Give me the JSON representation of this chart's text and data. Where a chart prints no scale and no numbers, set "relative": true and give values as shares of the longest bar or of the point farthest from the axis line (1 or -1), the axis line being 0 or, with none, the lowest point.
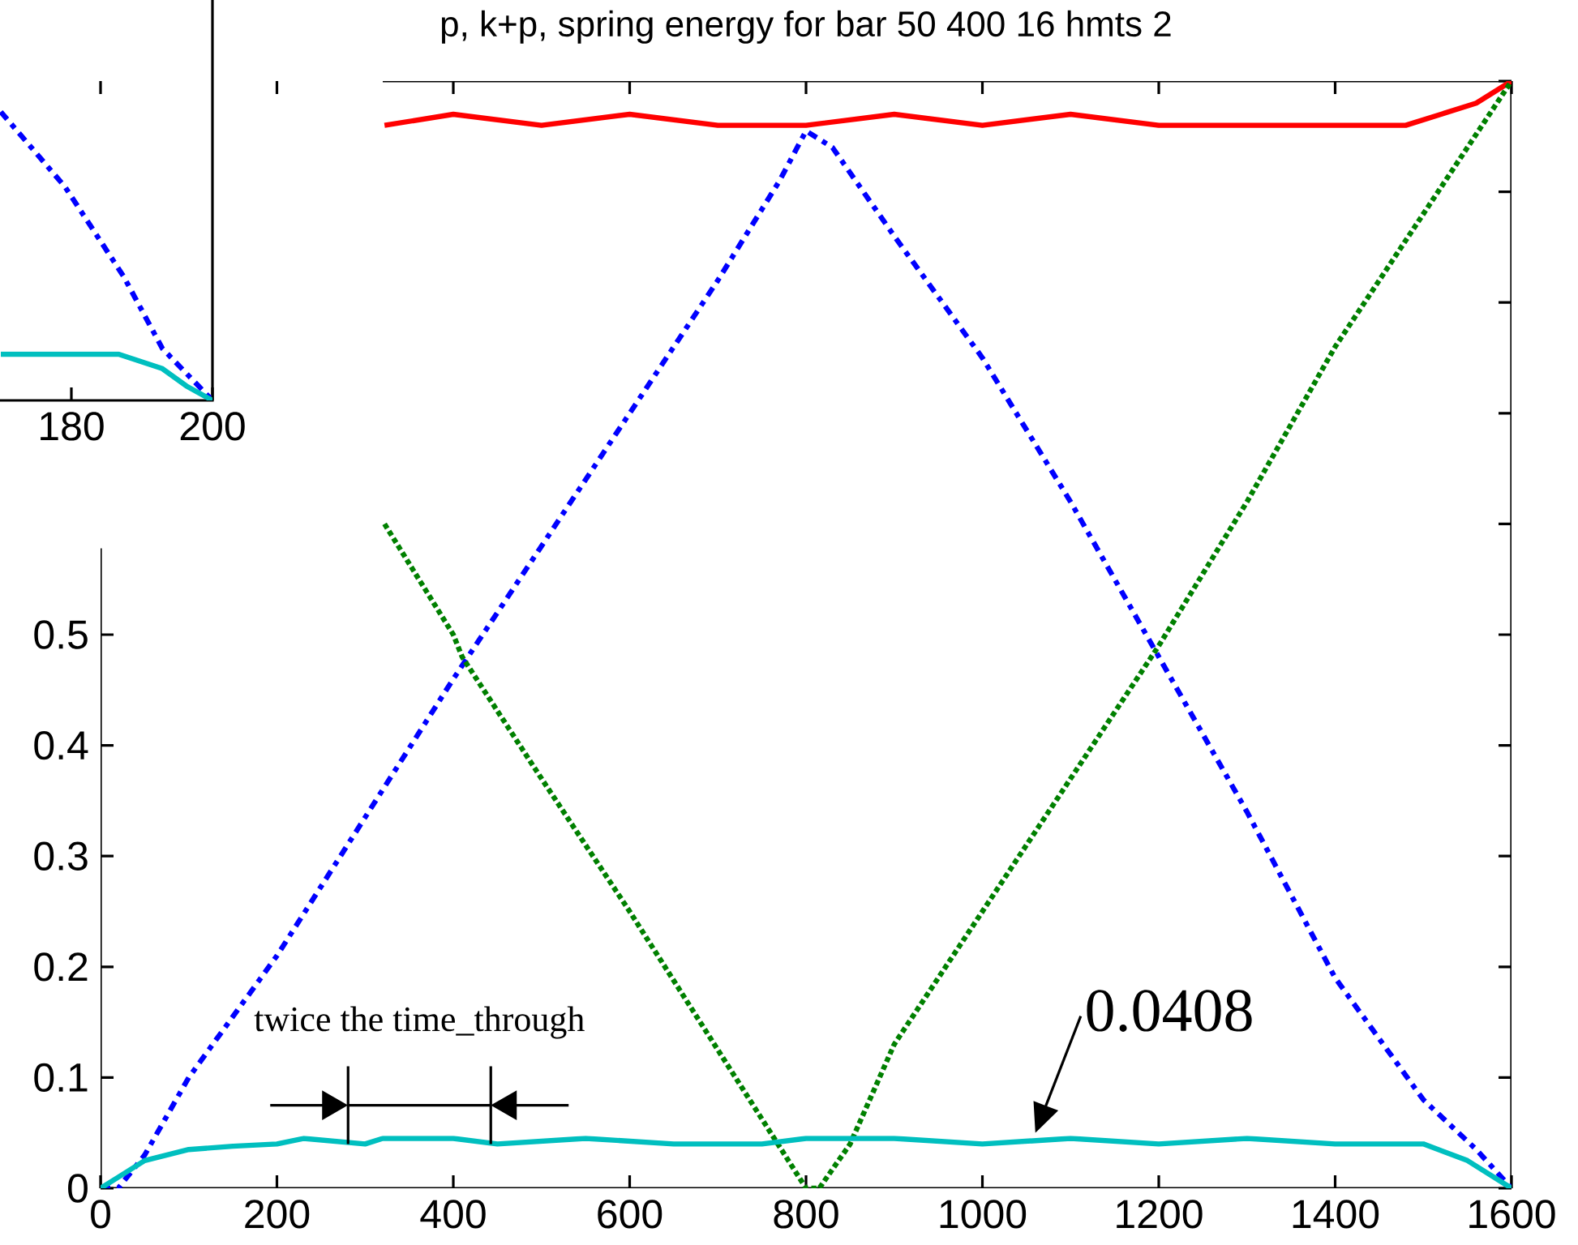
{
  "chart_data": [
    {
      "type": "line",
      "relative": true,
      "xlim": [
        160,
        200
      ],
      "xticks": [
        180,
        200
      ],
      "series": [
        {
          "color": "#0000ff",
          "line_style": "dashdot",
          "x": [
            170,
            179.1,
            187.4,
            192.9,
            200
          ],
          "values": [
            1,
            0.74,
            0.43,
            0.18,
            0
          ]
        },
        {
          "color": "#00bfbf",
          "line_style": "solid",
          "x": [
            170,
            186.7,
            192.9,
            196.3,
            200
          ],
          "values": [
            0.16,
            0.16,
            0.11,
            0.05,
            0
          ]
        }
      ]
    },
    {
      "type": "line",
      "title": "p, k+p, spring energy for bar 50 400 16 hmts 2",
      "xlim": [
        0,
        1600
      ],
      "ylim": [
        0,
        1
      ],
      "xticks": [
        0,
        200,
        400,
        600,
        800,
        1000,
        1200,
        1400,
        1600
      ],
      "yticks": [
        0,
        0.1,
        0.2,
        0.3,
        0.4,
        0.5,
        {
          "value": 0.6,
          "label": null
        },
        {
          "value": 0.7,
          "label": null
        },
        {
          "value": 0.8,
          "label": null
        },
        {
          "value": 0.9,
          "label": null
        },
        {
          "value": 1,
          "label": null
        }
      ],
      "series": [
        {
          "color": "#ff0000",
          "line_style": "solid",
          "x": [
            322,
            400,
            500,
            600,
            700,
            800,
            900,
            1000,
            1100,
            1200,
            1300,
            1400,
            1480,
            1520,
            1560,
            1600
          ],
          "values": [
            0.96,
            0.97,
            0.96,
            0.97,
            0.96,
            0.96,
            0.97,
            0.96,
            0.97,
            0.96,
            0.96,
            0.96,
            0.96,
            0.97,
            0.98,
            1.0
          ]
        },
        {
          "color": "#0000ff",
          "line_style": "dashdot",
          "x": [
            0,
            20,
            50,
            100,
            200,
            300,
            400,
            500,
            600,
            700,
            770,
            800,
            830,
            900,
            1000,
            1100,
            1200,
            1300,
            1400,
            1500,
            1560,
            1600
          ],
          "values": [
            0,
            0,
            0.03,
            0.1,
            0.21,
            0.335,
            0.46,
            0.58,
            0.7,
            0.82,
            0.91,
            0.955,
            0.94,
            0.86,
            0.75,
            0.62,
            0.48,
            0.34,
            0.19,
            0.08,
            0.035,
            0
          ]
        },
        {
          "color": "#008000",
          "line_style": "dotted",
          "x": [
            322,
            400,
            410,
            500,
            600,
            700,
            760,
            800,
            815,
            850,
            900,
            1000,
            1100,
            1200,
            1300,
            1400,
            1500,
            1600
          ],
          "values": [
            0.6,
            0.5,
            0.48,
            0.37,
            0.25,
            0.125,
            0.05,
            0,
            0,
            0.04,
            0.13,
            0.25,
            0.37,
            0.49,
            0.62,
            0.76,
            0.88,
            1.0
          ]
        },
        {
          "color": "#00bfbf",
          "line_style": "solid",
          "x": [
            0,
            20,
            50,
            100,
            150,
            200,
            230,
            300,
            320,
            400,
            450,
            550,
            650,
            750,
            800,
            900,
            1000,
            1100,
            1200,
            1300,
            1400,
            1500,
            1550,
            1600
          ],
          "values": [
            0,
            0.01,
            0.025,
            0.035,
            0.038,
            0.04,
            0.045,
            0.04,
            0.045,
            0.045,
            0.04,
            0.045,
            0.04,
            0.04,
            0.045,
            0.045,
            0.04,
            0.045,
            0.04,
            0.045,
            0.04,
            0.04,
            0.025,
            0
          ]
        }
      ],
      "annotations": [
        "twice the time_through",
        {
          "text": "0.0408",
          "x": 1060,
          "y": 0.05
        }
      ]
    }
  ]
}
